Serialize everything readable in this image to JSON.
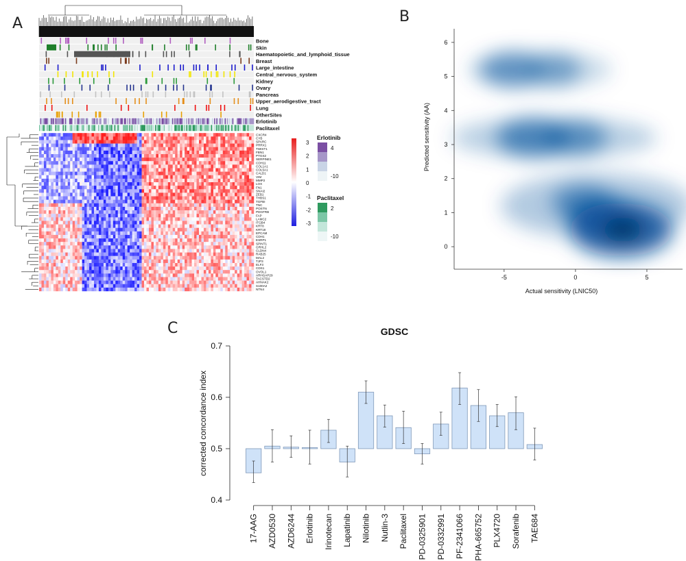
{
  "panels": {
    "a_letter": "A",
    "b_letter": "B",
    "c_letter": "C"
  },
  "heatmap": {
    "track_labels": [
      "Bone",
      "Skin",
      "Haematopoietic_and_lymphoid_tissue",
      "Breast",
      "Large_intestine",
      "Central_nervous_system",
      "Kidney",
      "Ovary",
      "Pancreas",
      "Upper_aerodigestive_tract",
      "Lung",
      "OtherSites",
      "Erlotinib",
      "Paclitaxel"
    ],
    "track_colors": [
      "#b15fc0",
      "#1f7f2a",
      "#555555",
      "#7a3b1c",
      "#1a1acc",
      "#f2e600",
      "#2c9a3a",
      "#23338e",
      "#c3c3c3",
      "#e58f1a",
      "#ee1111",
      "#e8a000",
      "#8a6fbf",
      "#3fae7a"
    ],
    "gene_labels": [
      "CXCR4",
      "CYB",
      "SPARC",
      "PRRX1",
      "TWIST1",
      "FBN1",
      "PTGS2",
      "SERPINE1",
      "CDH11",
      "COL1A1",
      "COL5A1",
      "CALD1",
      "VIM",
      "MMP2",
      "LOX",
      "FN1",
      "SNAI2",
      "ZEB1",
      "THBS1",
      "TGFBI",
      "TNC",
      "POSTN",
      "PDGFRB",
      "FAP",
      "LAMC2",
      "ITGB4",
      "KRT8",
      "KRT18",
      "EPCAM",
      "CDH1",
      "ESRP1",
      "SPINT1",
      "GRHL2",
      "CLDN4",
      "RAB25",
      "MAL2",
      "TJP3",
      "ELF3",
      "CDS1",
      "OVOL1",
      "ARHGAP29",
      "TACSTD2",
      "AHNAK2",
      "S100A2",
      "NTN4"
    ],
    "color_key_ticks": [
      "3",
      "2",
      "1",
      "0",
      "-1",
      "-2",
      "-3"
    ],
    "color_key_colors": {
      "high": "#e81e1e",
      "mid": "#ffffff",
      "low": "#1e1ee0"
    },
    "erlotinib_legend": {
      "title": "Erlotinib",
      "max": "4",
      "min": "-10",
      "colors": [
        "#7b4fa3",
        "#a696c8",
        "#c9d4e6",
        "#eef4f6"
      ]
    },
    "paclitaxel_legend": {
      "title": "Paclitaxel",
      "max": "2",
      "min": "-10",
      "colors": [
        "#2f9a5f",
        "#7cc6a6",
        "#c3e6da",
        "#eef6f6"
      ]
    }
  },
  "chart_data": [
    {
      "type": "heatmap",
      "rows": 45,
      "columns": "cell lines (hierarchically clustered)",
      "value_range": [
        -3,
        3
      ],
      "color_key_label": ""
    },
    {
      "type": "scatter",
      "style": "2d-density",
      "xlabel": "Actual sensitivity (LNIC50)",
      "ylabel": "Predicted sensitivity (AA)",
      "xlim": [
        -8.5,
        7.5
      ],
      "ylim": [
        -0.5,
        6.4
      ],
      "xticks": [
        -5,
        0,
        5
      ],
      "yticks": [
        0,
        1,
        2,
        3,
        4,
        5,
        6
      ],
      "color": "#08519c",
      "density_clusters": [
        {
          "x": 3.2,
          "y": 0.5,
          "weight": 1.0
        },
        {
          "x": 2.0,
          "y": 0.9,
          "weight": 0.55
        },
        {
          "x": 0.5,
          "y": 1.3,
          "weight": 0.35
        },
        {
          "x": -3.0,
          "y": 3.2,
          "weight": 0.5
        },
        {
          "x": 0.0,
          "y": 3.2,
          "weight": 0.35
        },
        {
          "x": -4.5,
          "y": 5.2,
          "weight": 0.35
        },
        {
          "x": -1.5,
          "y": 5.2,
          "weight": 0.2
        }
      ]
    },
    {
      "type": "bar",
      "title": "GDSC",
      "xlabel": "",
      "ylabel": "corrected concordance index",
      "ylim": [
        0.4,
        0.7
      ],
      "yticks": [
        0.4,
        0.5,
        0.6,
        0.7
      ],
      "baseline": 0.5,
      "categories": [
        "17-AAG",
        "AZD0530",
        "AZD6244",
        "Erlotinib",
        "Irinotecan",
        "Lapatinib",
        "Nilotinib",
        "Nutlin-3",
        "Paclitaxel",
        "PD-0325901",
        "PD-0332991",
        "PF-2341066",
        "PHA-665752",
        "PLX4720",
        "Sorafenib",
        "TAE684"
      ],
      "values": [
        0.453,
        0.505,
        0.503,
        0.502,
        0.536,
        0.474,
        0.61,
        0.564,
        0.541,
        0.49,
        0.548,
        0.618,
        0.584,
        0.564,
        0.57,
        0.508
      ],
      "error_low": [
        0.434,
        0.474,
        0.483,
        0.47,
        0.512,
        0.445,
        0.588,
        0.542,
        0.51,
        0.47,
        0.526,
        0.586,
        0.553,
        0.543,
        0.537,
        0.478
      ],
      "error_high": [
        0.476,
        0.537,
        0.525,
        0.536,
        0.557,
        0.505,
        0.632,
        0.585,
        0.573,
        0.51,
        0.571,
        0.648,
        0.615,
        0.586,
        0.601,
        0.54
      ],
      "bar_color": "#cfe2f8",
      "bar_edge": "#7f98b8"
    }
  ]
}
